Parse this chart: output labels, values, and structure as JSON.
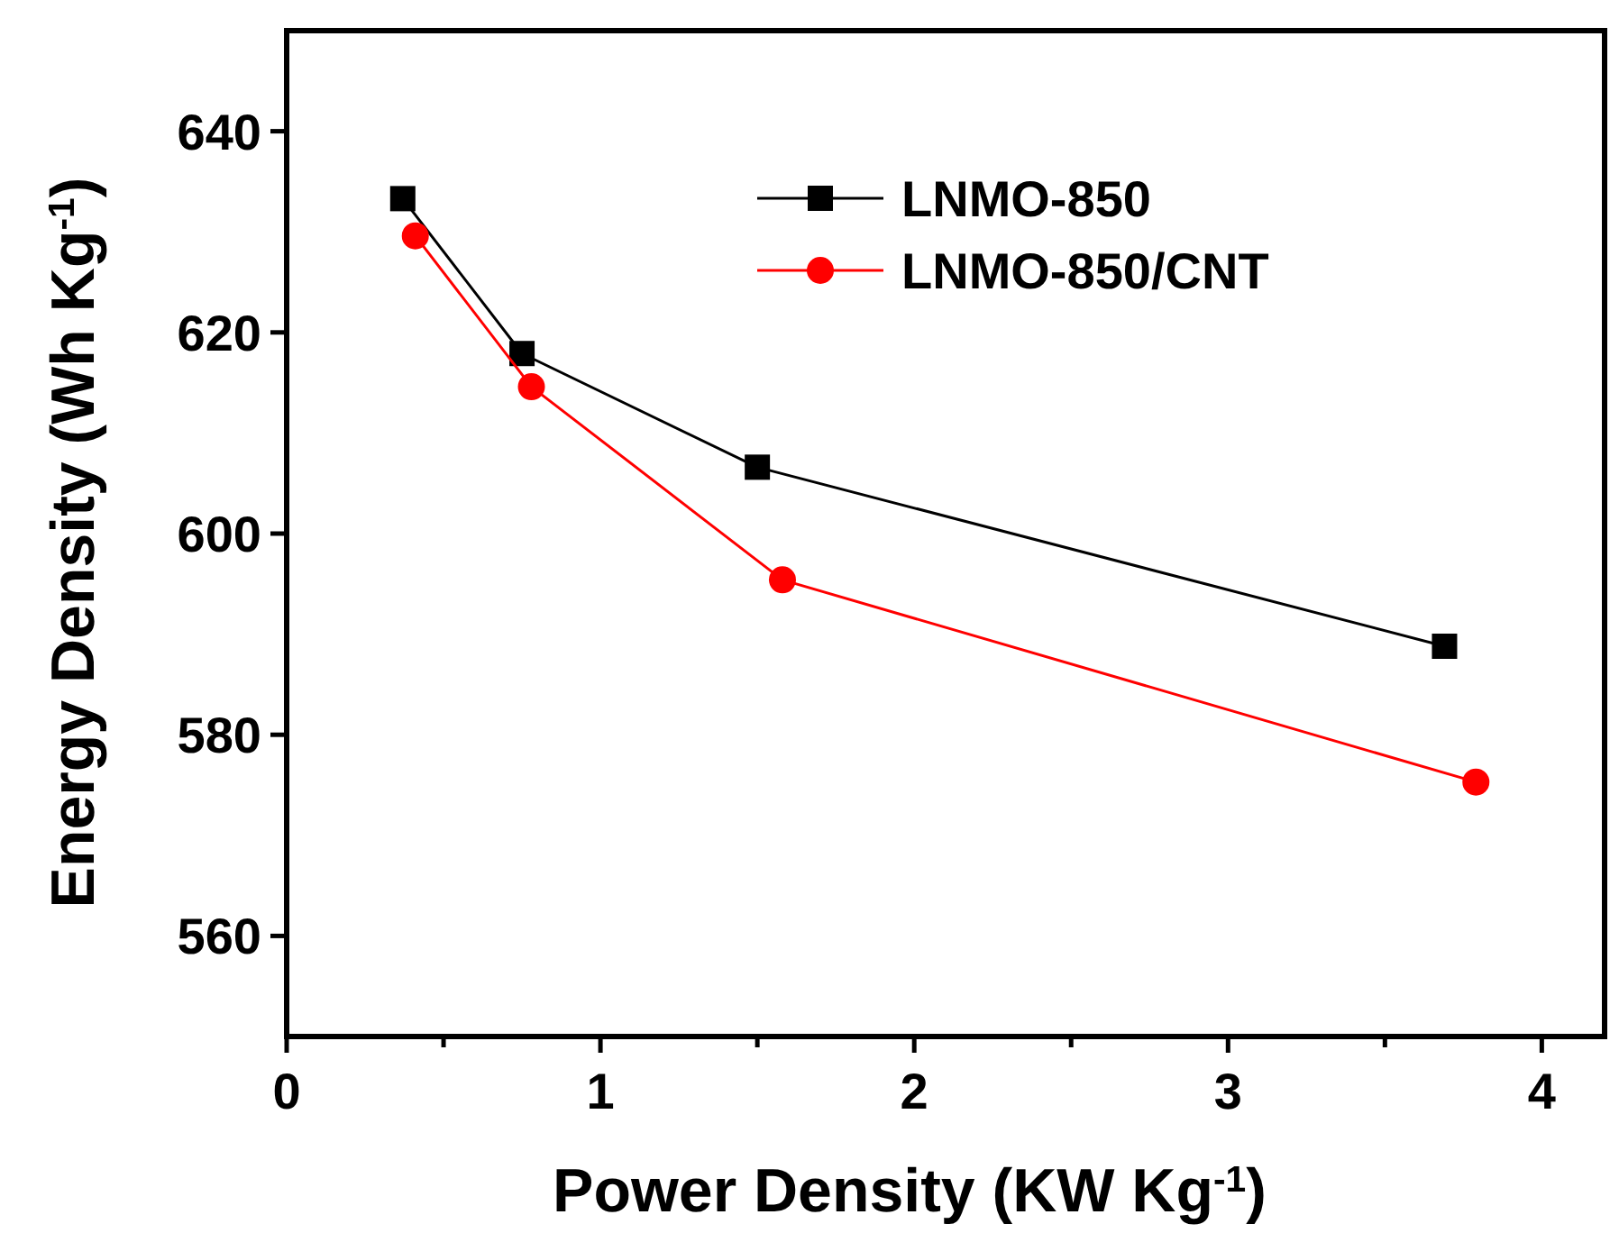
{
  "chart_data": {
    "type": "line",
    "xlabel": "Power Density (KW Kg$^{-1}$)",
    "ylabel": "Energy Density (Wh Kg$^{-1}$)",
    "xlim": [
      0,
      4.2
    ],
    "xticks": [
      0,
      {
        "value": 0.5,
        "label": null
      },
      1,
      {
        "value": 1.5,
        "label": null
      },
      2,
      {
        "value": 2.5,
        "label": null
      },
      3,
      {
        "value": 3.5,
        "label": null
      },
      4
    ],
    "ylim": [
      550,
      650
    ],
    "yticks": [
      560,
      580,
      600,
      620,
      640
    ],
    "series": [
      {
        "name": "LNMO-850",
        "color": "#000000",
        "marker": "square",
        "x": [
          0.37,
          0.75,
          1.5,
          3.69
        ],
        "values": [
          633.3,
          617.9,
          606.6,
          588.8
        ]
      },
      {
        "name": "LNMO-850/CNT",
        "color": "#ff0000",
        "marker": "circle",
        "x": [
          0.41,
          0.78,
          1.58,
          3.79
        ],
        "values": [
          629.6,
          614.6,
          595.4,
          575.3
        ]
      }
    ],
    "legend": "top right",
    "grid": false,
    "line_style": "solid"
  }
}
